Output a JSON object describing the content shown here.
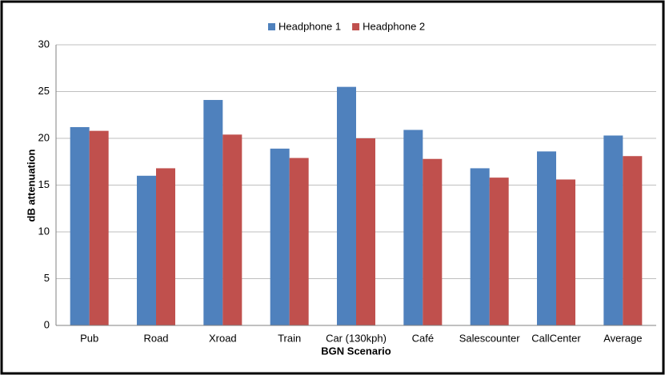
{
  "chart_data": {
    "type": "bar",
    "categories": [
      "Pub",
      "Road",
      "Xroad",
      "Train",
      "Car (130kph)",
      "Café",
      "Salescounter",
      "CallCenter",
      "Average"
    ],
    "series": [
      {
        "name": "Headphone 1",
        "color": "#4f81bd",
        "values": [
          21.2,
          16.0,
          24.1,
          18.9,
          25.5,
          20.9,
          16.8,
          18.6,
          20.3
        ]
      },
      {
        "name": "Headphone 2",
        "color": "#c0504d",
        "values": [
          20.8,
          16.8,
          20.4,
          17.9,
          20.0,
          17.8,
          15.8,
          15.6,
          18.1
        ]
      }
    ],
    "ylabel": "dB attenuation",
    "xlabel": "BGN Scenario",
    "ylim": [
      0,
      30
    ],
    "yticks": [
      0,
      5,
      10,
      15,
      20,
      25,
      30
    ],
    "grid": true,
    "legend": "top"
  }
}
